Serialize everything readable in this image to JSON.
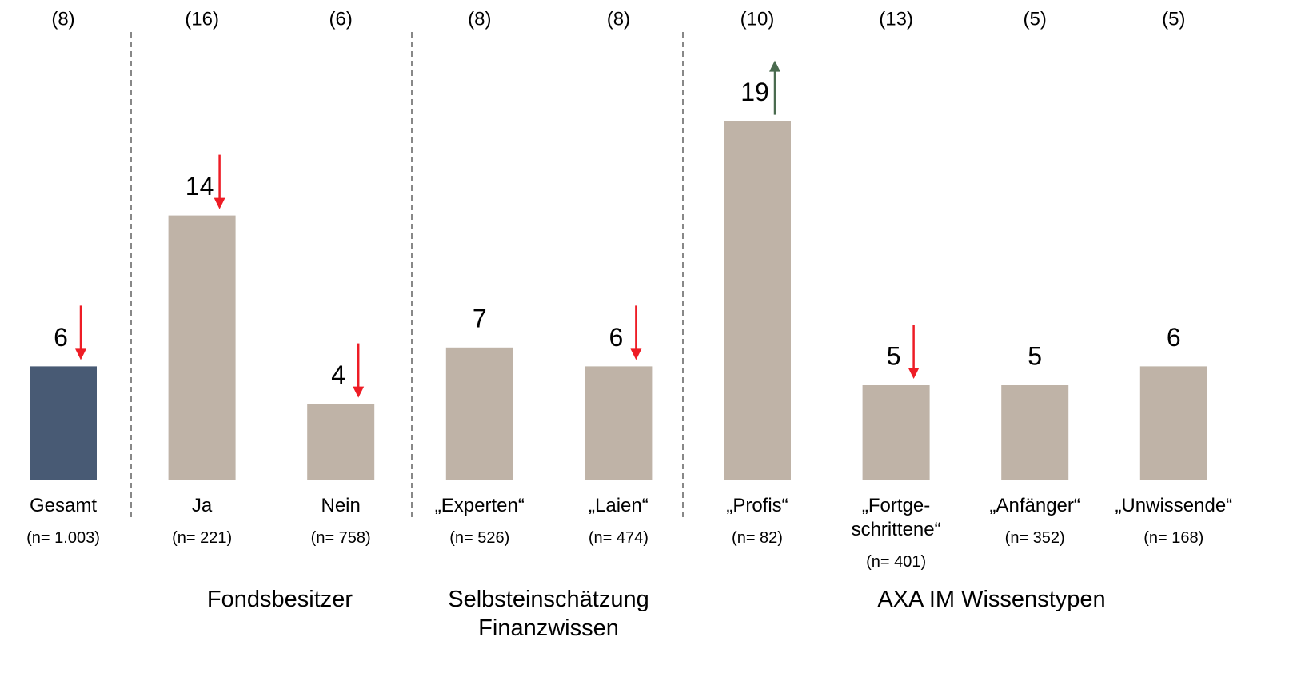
{
  "chart_data": {
    "type": "bar",
    "categories": [
      "Gesamt",
      "Ja",
      "Nein",
      "„Experten“",
      "„Laien“",
      "„Profis“",
      "„Fortge-\nschrittene“",
      "„Anfänger“",
      "„Unwissende“"
    ],
    "sample_sizes": [
      "(n= 1.003)",
      "(n= 221)",
      "(n= 758)",
      "(n= 526)",
      "(n= 474)",
      "(n= 82)",
      "(n= 401)",
      "(n= 352)",
      "(n= 168)"
    ],
    "values": [
      6,
      14,
      4,
      7,
      6,
      19,
      5,
      5,
      6
    ],
    "previous_labels": [
      "(8)",
      "(16)",
      "(6)",
      "(8)",
      "(8)",
      "(10)",
      "(13)",
      "(5)",
      "(5)"
    ],
    "trends": [
      "down",
      "down",
      "down",
      null,
      "down",
      "up",
      "down",
      null,
      null
    ],
    "colors": [
      "#485a74",
      "#bfb3a7",
      "#bfb3a7",
      "#bfb3a7",
      "#bfb3a7",
      "#bfb3a7",
      "#bfb3a7",
      "#bfb3a7",
      "#bfb3a7"
    ],
    "trend_colors": {
      "down": "#ee1c25",
      "up": "#4a6b4f"
    },
    "groups": [
      "Fondsbesitzer",
      "Selbsteinschätzung\nFinanzwissen",
      "AXA IM Wissenstypen"
    ]
  }
}
